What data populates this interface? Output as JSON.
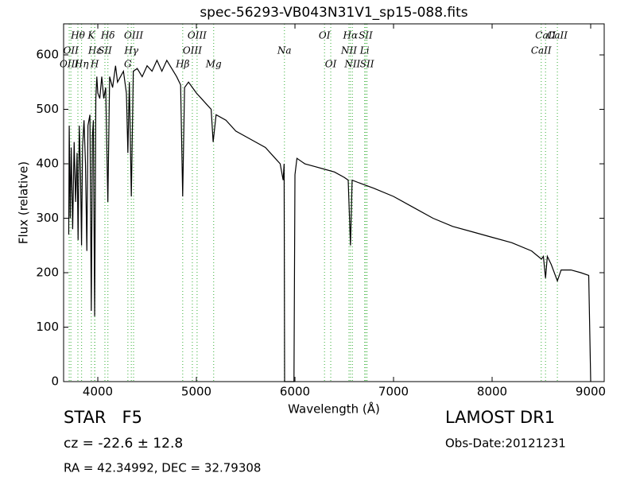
{
  "chart_data": {
    "type": "line",
    "title": "spec-56293-VB043N31V1_sp15-088.fits",
    "xlabel": "Wavelength (Å)",
    "ylabel": "Flux (relative)",
    "xlim": [
      3653,
      9137
    ],
    "ylim": [
      0,
      657
    ],
    "xticks": [
      4000,
      5000,
      6000,
      7000,
      8000,
      9000
    ],
    "yticks": [
      0,
      100,
      200,
      300,
      400,
      500,
      600
    ],
    "x": [
      3705,
      3710,
      3720,
      3730,
      3745,
      3760,
      3775,
      3790,
      3800,
      3812,
      3825,
      3835,
      3845,
      3860,
      3875,
      3889,
      3900,
      3920,
      3934,
      3945,
      3955,
      3968,
      3980,
      3990,
      4000,
      4020,
      4040,
      4060,
      4080,
      4102,
      4120,
      4150,
      4180,
      4200,
      4230,
      4260,
      4290,
      4305,
      4320,
      4340,
      4360,
      4400,
      4450,
      4500,
      4550,
      4600,
      4650,
      4700,
      4750,
      4800,
      4840,
      4861,
      4880,
      4920,
      4960,
      5000,
      5050,
      5100,
      5150,
      5170,
      5200,
      5300,
      5400,
      5500,
      5600,
      5700,
      5800,
      5850,
      5880,
      5890,
      5895,
      5990,
      6000,
      6020,
      6100,
      6200,
      6300,
      6400,
      6500,
      6540,
      6563,
      6580,
      6650,
      6800,
      7000,
      7200,
      7400,
      7600,
      7800,
      8000,
      8200,
      8400,
      8500,
      8520,
      8542,
      8560,
      8600,
      8662,
      8700,
      8800,
      8900,
      8980,
      9000
    ],
    "series": [
      {
        "color": "#000000",
        "values": [
          270,
          470,
          300,
          430,
          280,
          440,
          330,
          420,
          260,
          470,
          380,
          250,
          430,
          480,
          400,
          240,
          470,
          490,
          130,
          450,
          480,
          120,
          520,
          560,
          530,
          520,
          560,
          520,
          540,
          330,
          560,
          540,
          580,
          550,
          560,
          570,
          530,
          420,
          550,
          340,
          570,
          575,
          560,
          580,
          570,
          590,
          570,
          590,
          575,
          560,
          545,
          340,
          540,
          550,
          540,
          530,
          520,
          510,
          500,
          440,
          490,
          480,
          460,
          450,
          440,
          430,
          410,
          400,
          370,
          400,
          0,
          0,
          380,
          410,
          400,
          395,
          390,
          385,
          375,
          370,
          250,
          370,
          365,
          355,
          340,
          320,
          300,
          285,
          275,
          265,
          255,
          240,
          225,
          230,
          190,
          230,
          215,
          185,
          205,
          205,
          200,
          195,
          0
        ]
      }
    ],
    "line_color": "#55bb55",
    "spectral_lines": [
      {
        "label": "Hθ",
        "x": 3798
      },
      {
        "label": "OII",
        "x": 3727
      },
      {
        "label": "OIII",
        "x": 3710
      },
      {
        "label": "K",
        "x": 3934
      },
      {
        "label": "Hε",
        "x": 3970
      },
      {
        "label": "Hη",
        "x": 3835
      },
      {
        "label": "Hδ",
        "x": 4102
      },
      {
        "label": "SII",
        "x": 4072
      },
      {
        "label": "H",
        "x": 3968
      },
      {
        "label": "OIII",
        "x": 4363
      },
      {
        "label": "Hγ",
        "x": 4340
      },
      {
        "label": "G",
        "x": 4305
      },
      {
        "label": "OIII",
        "x": 5007
      },
      {
        "label": "OIII",
        "x": 4959
      },
      {
        "label": "Hβ",
        "x": 4861
      },
      {
        "label": "OI",
        "x": 6300
      },
      {
        "label": "Na",
        "x": 5893
      },
      {
        "label": "Mg",
        "x": 5175
      },
      {
        "label": "Hα",
        "x": 6563
      },
      {
        "label": "NII",
        "x": 6548
      },
      {
        "label": "OI",
        "x": 6363
      },
      {
        "label": "SII",
        "x": 6717
      },
      {
        "label": "Li",
        "x": 6707
      },
      {
        "label": "NII",
        "x": 6583
      },
      {
        "label": "CaII",
        "x": 8542
      },
      {
        "label": "CaII",
        "x": 8498
      },
      {
        "label": "SII",
        "x": 6731
      },
      {
        "label": "CaII",
        "x": 8662
      }
    ],
    "object": "STAR   F5",
    "redshift": "cz = -22.6 ± 12.8",
    "coords": "RA = 42.34992, DEC = 32.79308",
    "survey": "LAMOST DR1",
    "obs_date": "Obs-Date:20121231"
  }
}
